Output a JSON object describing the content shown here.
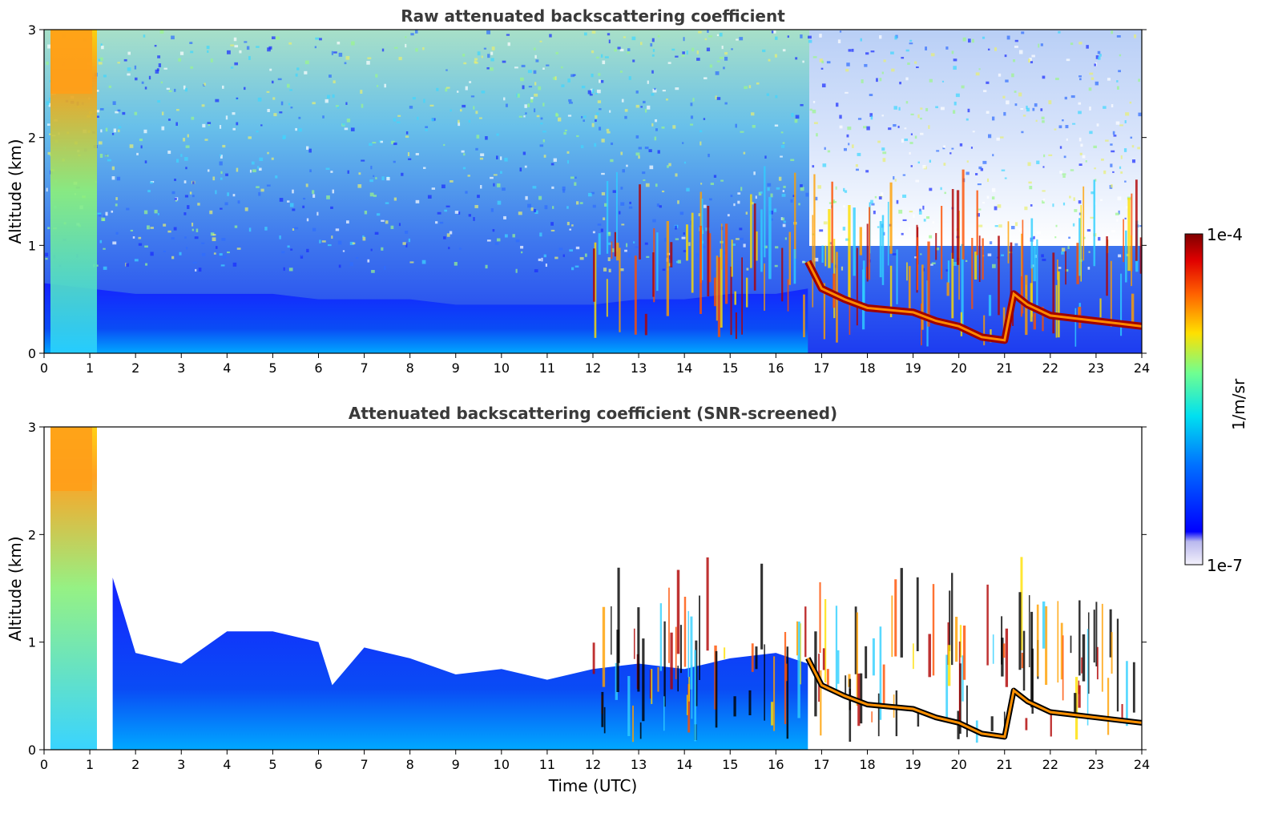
{
  "chart_data": [
    {
      "type": "heatmap",
      "title": "Raw attenuated backscattering coefficient",
      "xlabel": "",
      "ylabel": "Altitude (km)",
      "xlim": [
        0,
        24
      ],
      "ylim": [
        0,
        3
      ],
      "xticks": [
        0,
        1,
        2,
        3,
        4,
        5,
        6,
        7,
        8,
        9,
        10,
        11,
        12,
        13,
        14,
        15,
        16,
        17,
        18,
        19,
        20,
        21,
        22,
        23,
        24
      ],
      "yticks": [
        0,
        1,
        2,
        3
      ],
      "grid": false,
      "colormap": "jet",
      "colorbar": {
        "label": "1/m/sr",
        "min_label": "1e-7",
        "max_label": "1e-4"
      },
      "features": {
        "boundary_layer_top_km": [
          [
            0,
            0.65
          ],
          [
            1,
            0.6
          ],
          [
            2,
            0.55
          ],
          [
            3,
            0.55
          ],
          [
            4,
            0.55
          ],
          [
            5,
            0.55
          ],
          [
            6,
            0.5
          ],
          [
            7,
            0.5
          ],
          [
            8,
            0.5
          ],
          [
            9,
            0.45
          ],
          [
            10,
            0.45
          ],
          [
            11,
            0.45
          ],
          [
            12,
            0.45
          ],
          [
            13,
            0.5
          ],
          [
            14,
            0.5
          ],
          [
            15,
            0.55
          ],
          [
            16,
            0.55
          ],
          [
            16.7,
            0.6
          ]
        ],
        "cloud_layer_km": [
          [
            16.7,
            0.85
          ],
          [
            17,
            0.6
          ],
          [
            17.5,
            0.5
          ],
          [
            18,
            0.42
          ],
          [
            19,
            0.38
          ],
          [
            19.5,
            0.3
          ],
          [
            20,
            0.25
          ],
          [
            20.5,
            0.15
          ],
          [
            21,
            0.12
          ],
          [
            21.2,
            0.55
          ],
          [
            21.5,
            0.45
          ],
          [
            22,
            0.35
          ],
          [
            23,
            0.3
          ],
          [
            24,
            0.25
          ]
        ],
        "thick_cloud_column_hours": [
          0.2,
          1.2
        ]
      }
    },
    {
      "type": "heatmap",
      "title": "Attenuated backscattering coefficient (SNR-screened)",
      "xlabel": "Time (UTC)",
      "ylabel": "Altitude (km)",
      "xlim": [
        0,
        24
      ],
      "ylim": [
        0,
        3
      ],
      "xticks": [
        0,
        1,
        2,
        3,
        4,
        5,
        6,
        7,
        8,
        9,
        10,
        11,
        12,
        13,
        14,
        15,
        16,
        17,
        18,
        19,
        20,
        21,
        22,
        23,
        24
      ],
      "yticks": [
        0,
        1,
        2,
        3
      ],
      "grid": false,
      "colormap": "jet",
      "colorbar": {
        "label": "1/m/sr",
        "min_label": "1e-7",
        "max_label": "1e-4"
      },
      "features": {
        "screened_aerosol_top_km": [
          [
            1.5,
            1.6
          ],
          [
            2,
            0.9
          ],
          [
            3,
            0.8
          ],
          [
            4,
            1.1
          ],
          [
            5,
            1.1
          ],
          [
            6,
            1.0
          ],
          [
            6.3,
            0.6
          ],
          [
            7,
            0.95
          ],
          [
            8,
            0.85
          ],
          [
            9,
            0.7
          ],
          [
            10,
            0.75
          ],
          [
            11,
            0.65
          ],
          [
            12,
            0.75
          ],
          [
            13,
            0.8
          ],
          [
            14,
            0.75
          ],
          [
            15,
            0.85
          ],
          [
            16,
            0.9
          ],
          [
            16.7,
            0.8
          ]
        ]
      }
    }
  ]
}
